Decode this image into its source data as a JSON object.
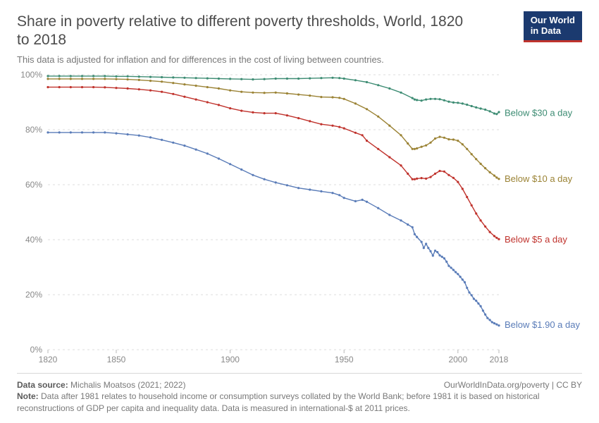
{
  "header": {
    "title": "Share in poverty relative to different poverty thresholds, World, 1820 to 2018",
    "subtitle": "This data is adjusted for inflation and for differences in the cost of living between countries.",
    "logo_line1": "Our World",
    "logo_line2": "in Data"
  },
  "chart": {
    "type": "line",
    "background_color": "#ffffff",
    "grid_color": "#dcdcdc",
    "axis_text_color": "#888888",
    "axis_fontsize": 12,
    "label_fontsize": 13,
    "xlim": [
      1820,
      2018
    ],
    "ylim": [
      0,
      100
    ],
    "yticks": [
      0,
      20,
      40,
      60,
      80,
      100
    ],
    "ytick_labels": [
      "0%",
      "20%",
      "40%",
      "60%",
      "80%",
      "100%"
    ],
    "xticks": [
      1820,
      1850,
      1900,
      1950,
      2000,
      2018
    ],
    "xtick_labels": [
      "1820",
      "1850",
      "1900",
      "1950",
      "2000",
      "2018"
    ],
    "line_width": 1.4,
    "marker_radius": 1.6,
    "series": [
      {
        "name": "Below $30 a day",
        "color": "#3d8c73",
        "label": "Below $30 a day",
        "label_y": 86,
        "data": [
          [
            1820,
            99.5
          ],
          [
            1825,
            99.5
          ],
          [
            1830,
            99.5
          ],
          [
            1835,
            99.5
          ],
          [
            1840,
            99.5
          ],
          [
            1845,
            99.5
          ],
          [
            1850,
            99.4
          ],
          [
            1855,
            99.4
          ],
          [
            1860,
            99.3
          ],
          [
            1865,
            99.2
          ],
          [
            1870,
            99.1
          ],
          [
            1875,
            99.0
          ],
          [
            1880,
            98.9
          ],
          [
            1885,
            98.8
          ],
          [
            1890,
            98.7
          ],
          [
            1895,
            98.6
          ],
          [
            1900,
            98.5
          ],
          [
            1905,
            98.4
          ],
          [
            1910,
            98.3
          ],
          [
            1915,
            98.4
          ],
          [
            1920,
            98.6
          ],
          [
            1925,
            98.6
          ],
          [
            1930,
            98.6
          ],
          [
            1935,
            98.7
          ],
          [
            1940,
            98.8
          ],
          [
            1945,
            98.9
          ],
          [
            1948,
            98.8
          ],
          [
            1950,
            98.6
          ],
          [
            1955,
            98.0
          ],
          [
            1960,
            97.3
          ],
          [
            1965,
            96.2
          ],
          [
            1970,
            95.0
          ],
          [
            1975,
            93.5
          ],
          [
            1980,
            91.5
          ],
          [
            1981,
            91.0
          ],
          [
            1982,
            90.8
          ],
          [
            1984,
            90.6
          ],
          [
            1986,
            91.0
          ],
          [
            1988,
            91.2
          ],
          [
            1990,
            91.2
          ],
          [
            1992,
            91.1
          ],
          [
            1994,
            90.7
          ],
          [
            1996,
            90.2
          ],
          [
            1998,
            89.9
          ],
          [
            2000,
            89.8
          ],
          [
            2002,
            89.5
          ],
          [
            2004,
            89.1
          ],
          [
            2006,
            88.6
          ],
          [
            2008,
            88.1
          ],
          [
            2010,
            87.7
          ],
          [
            2012,
            87.3
          ],
          [
            2014,
            86.7
          ],
          [
            2016,
            85.9
          ],
          [
            2017,
            85.7
          ],
          [
            2018,
            86.4
          ]
        ]
      },
      {
        "name": "Below $10 a day",
        "color": "#9b8335",
        "label": "Below $10 a day",
        "label_y": 62,
        "data": [
          [
            1820,
            98.5
          ],
          [
            1825,
            98.5
          ],
          [
            1830,
            98.5
          ],
          [
            1835,
            98.5
          ],
          [
            1840,
            98.5
          ],
          [
            1845,
            98.5
          ],
          [
            1850,
            98.4
          ],
          [
            1855,
            98.3
          ],
          [
            1860,
            98.1
          ],
          [
            1865,
            97.8
          ],
          [
            1870,
            97.5
          ],
          [
            1875,
            97.0
          ],
          [
            1880,
            96.5
          ],
          [
            1885,
            96.0
          ],
          [
            1890,
            95.5
          ],
          [
            1895,
            95.0
          ],
          [
            1900,
            94.3
          ],
          [
            1905,
            93.8
          ],
          [
            1910,
            93.5
          ],
          [
            1915,
            93.4
          ],
          [
            1920,
            93.5
          ],
          [
            1925,
            93.2
          ],
          [
            1930,
            92.8
          ],
          [
            1935,
            92.4
          ],
          [
            1940,
            91.9
          ],
          [
            1945,
            91.8
          ],
          [
            1948,
            91.6
          ],
          [
            1950,
            91.2
          ],
          [
            1955,
            89.5
          ],
          [
            1960,
            87.5
          ],
          [
            1965,
            84.8
          ],
          [
            1970,
            81.5
          ],
          [
            1975,
            78.0
          ],
          [
            1978,
            75.0
          ],
          [
            1980,
            73.0
          ],
          [
            1981,
            73.0
          ],
          [
            1982,
            73.2
          ],
          [
            1984,
            73.8
          ],
          [
            1986,
            74.3
          ],
          [
            1988,
            75.3
          ],
          [
            1990,
            76.8
          ],
          [
            1992,
            77.4
          ],
          [
            1994,
            77.1
          ],
          [
            1996,
            76.5
          ],
          [
            1998,
            76.4
          ],
          [
            2000,
            76.0
          ],
          [
            2002,
            74.7
          ],
          [
            2004,
            73.0
          ],
          [
            2006,
            71.1
          ],
          [
            2008,
            69.3
          ],
          [
            2010,
            67.6
          ],
          [
            2012,
            66.0
          ],
          [
            2014,
            64.5
          ],
          [
            2016,
            63.3
          ],
          [
            2017,
            62.6
          ],
          [
            2018,
            62.1
          ]
        ]
      },
      {
        "name": "Below $5 a day",
        "color": "#c0332d",
        "label": "Below $5 a day",
        "label_y": 40,
        "data": [
          [
            1820,
            95.5
          ],
          [
            1825,
            95.5
          ],
          [
            1830,
            95.5
          ],
          [
            1835,
            95.5
          ],
          [
            1840,
            95.5
          ],
          [
            1845,
            95.4
          ],
          [
            1850,
            95.2
          ],
          [
            1855,
            95.0
          ],
          [
            1860,
            94.7
          ],
          [
            1865,
            94.3
          ],
          [
            1870,
            93.8
          ],
          [
            1875,
            93.0
          ],
          [
            1880,
            92.0
          ],
          [
            1885,
            91.0
          ],
          [
            1890,
            90.0
          ],
          [
            1895,
            89.0
          ],
          [
            1900,
            87.8
          ],
          [
            1905,
            86.9
          ],
          [
            1910,
            86.3
          ],
          [
            1915,
            86.0
          ],
          [
            1920,
            86.0
          ],
          [
            1925,
            85.2
          ],
          [
            1930,
            84.2
          ],
          [
            1935,
            83.1
          ],
          [
            1940,
            82.0
          ],
          [
            1945,
            81.5
          ],
          [
            1948,
            81.0
          ],
          [
            1950,
            80.5
          ],
          [
            1955,
            78.9
          ],
          [
            1958,
            78.0
          ],
          [
            1960,
            76.0
          ],
          [
            1965,
            73.0
          ],
          [
            1970,
            70.0
          ],
          [
            1975,
            67.0
          ],
          [
            1978,
            64.0
          ],
          [
            1980,
            62.0
          ],
          [
            1981,
            62.0
          ],
          [
            1982,
            62.2
          ],
          [
            1984,
            62.4
          ],
          [
            1986,
            62.2
          ],
          [
            1988,
            62.8
          ],
          [
            1990,
            64.0
          ],
          [
            1992,
            65.0
          ],
          [
            1994,
            64.8
          ],
          [
            1996,
            63.5
          ],
          [
            1998,
            62.5
          ],
          [
            2000,
            61.0
          ],
          [
            2002,
            58.5
          ],
          [
            2004,
            55.5
          ],
          [
            2006,
            52.5
          ],
          [
            2008,
            49.5
          ],
          [
            2010,
            47.0
          ],
          [
            2012,
            44.8
          ],
          [
            2014,
            42.8
          ],
          [
            2016,
            41.3
          ],
          [
            2017,
            40.7
          ],
          [
            2018,
            40.2
          ]
        ]
      },
      {
        "name": "Below $1.90 a day",
        "color": "#5a7cb8",
        "label": "Below $1.90 a day",
        "label_y": 9,
        "data": [
          [
            1820,
            79.0
          ],
          [
            1825,
            79.0
          ],
          [
            1830,
            79.0
          ],
          [
            1835,
            79.0
          ],
          [
            1840,
            79.0
          ],
          [
            1845,
            79.0
          ],
          [
            1850,
            78.7
          ],
          [
            1855,
            78.3
          ],
          [
            1860,
            77.9
          ],
          [
            1865,
            77.2
          ],
          [
            1870,
            76.3
          ],
          [
            1875,
            75.3
          ],
          [
            1880,
            74.2
          ],
          [
            1885,
            72.8
          ],
          [
            1890,
            71.3
          ],
          [
            1895,
            69.5
          ],
          [
            1900,
            67.5
          ],
          [
            1905,
            65.5
          ],
          [
            1910,
            63.5
          ],
          [
            1915,
            62.0
          ],
          [
            1920,
            60.8
          ],
          [
            1925,
            59.8
          ],
          [
            1930,
            58.8
          ],
          [
            1935,
            58.2
          ],
          [
            1940,
            57.6
          ],
          [
            1945,
            57.0
          ],
          [
            1948,
            56.2
          ],
          [
            1950,
            55.2
          ],
          [
            1955,
            54.0
          ],
          [
            1958,
            54.5
          ],
          [
            1960,
            53.8
          ],
          [
            1965,
            51.5
          ],
          [
            1970,
            49.0
          ],
          [
            1975,
            47.0
          ],
          [
            1978,
            45.5
          ],
          [
            1980,
            44.5
          ],
          [
            1981,
            42.0
          ],
          [
            1982,
            41.0
          ],
          [
            1984,
            39.2
          ],
          [
            1985,
            37.0
          ],
          [
            1986,
            38.5
          ],
          [
            1987,
            37.0
          ],
          [
            1988,
            35.8
          ],
          [
            1989,
            34.2
          ],
          [
            1990,
            36.0
          ],
          [
            1991,
            35.5
          ],
          [
            1992,
            34.3
          ],
          [
            1993,
            33.8
          ],
          [
            1994,
            33.2
          ],
          [
            1995,
            32.0
          ],
          [
            1996,
            30.5
          ],
          [
            1997,
            29.8
          ],
          [
            1998,
            29.0
          ],
          [
            1999,
            28.2
          ],
          [
            2000,
            27.5
          ],
          [
            2001,
            26.5
          ],
          [
            2002,
            25.5
          ],
          [
            2003,
            24.5
          ],
          [
            2004,
            22.5
          ],
          [
            2005,
            20.8
          ],
          [
            2006,
            19.8
          ],
          [
            2007,
            18.5
          ],
          [
            2008,
            17.8
          ],
          [
            2009,
            16.8
          ],
          [
            2010,
            15.8
          ],
          [
            2011,
            14.2
          ],
          [
            2012,
            12.8
          ],
          [
            2013,
            11.5
          ],
          [
            2014,
            10.8
          ],
          [
            2015,
            10.0
          ],
          [
            2016,
            9.6
          ],
          [
            2017,
            9.2
          ],
          [
            2018,
            8.8
          ]
        ]
      }
    ]
  },
  "footer": {
    "source_label": "Data source:",
    "source_text": "Michalis Moatsos (2021; 2022)",
    "link_text": "OurWorldInData.org/poverty | CC BY",
    "note_label": "Note:",
    "note_text": "Data after 1981 relates to household income or consumption surveys collated by the World Bank; before 1981 it is based on historical reconstructions of GDP per capita and inequality data. Data is measured in international-$ at 2011 prices."
  }
}
